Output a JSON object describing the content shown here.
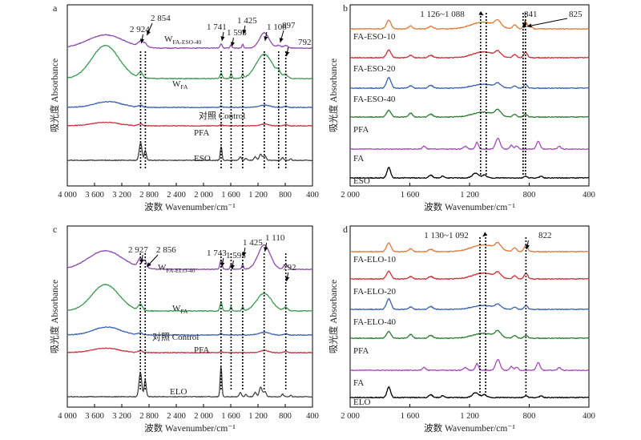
{
  "figure": {
    "axis_xlabel": "波数 Wavenumber/cm⁻¹",
    "axis_ylabel": "吸光度 Absorbance"
  },
  "chart_data": [
    {
      "panel": "a",
      "type": "line",
      "title": "",
      "xlabel": "波数 Wavenumber/cm⁻¹",
      "ylabel": "吸光度 Absorbance",
      "xlim": [
        4000,
        400
      ],
      "x_ticks": [
        "4 000",
        "3 600",
        "3 200",
        "2 800",
        "2 400",
        "2 000",
        "1 600",
        "1 200",
        "800",
        "400"
      ],
      "series": [
        {
          "name": "W",
          "sub": "FA-ESO-40",
          "color": "#8e4bb0",
          "peaks": [
            [
              3440,
              30,
              260
            ],
            [
              2924,
              12,
              35
            ],
            [
              2854,
              8,
              25
            ],
            [
              1741,
              10,
              15
            ],
            [
              1595,
              8,
              12
            ],
            [
              1425,
              8,
              12
            ],
            [
              1108,
              35,
              70
            ],
            [
              897,
              6,
              35
            ],
            [
              792,
              6,
              30
            ]
          ]
        },
        {
          "name": "W",
          "sub": "FA",
          "color": "#3a9a50",
          "peaks": [
            [
              3440,
              75,
              200
            ],
            [
              2924,
              12,
              30
            ],
            [
              1741,
              12,
              15
            ],
            [
              1595,
              12,
              12
            ],
            [
              1425,
              10,
              12
            ],
            [
              1108,
              55,
              120
            ],
            [
              897,
              10,
              30
            ],
            [
              792,
              8,
              30
            ]
          ]
        },
        {
          "name": "对照 Control",
          "color": "#3a62b5",
          "peaks": [
            [
              3400,
              13,
              200
            ],
            [
              2924,
              4,
              30
            ],
            [
              1741,
              3,
              15
            ],
            [
              1108,
              5,
              80
            ],
            [
              792,
              3,
              20
            ]
          ]
        },
        {
          "name": "PFA",
          "color": "#c9343f",
          "peaks": [
            [
              3440,
              8,
              200
            ],
            [
              2924,
              4,
              30
            ],
            [
              1741,
              3,
              15
            ],
            [
              1108,
              4,
              60
            ],
            [
              792,
              3,
              20
            ]
          ]
        },
        {
          "name": "ESO",
          "color": "#444444",
          "peaks": [
            [
              2924,
              40,
              20
            ],
            [
              2854,
              22,
              15
            ],
            [
              1741,
              32,
              12
            ],
            [
              1460,
              8,
              15
            ],
            [
              1380,
              5,
              12
            ],
            [
              1240,
              8,
              20
            ],
            [
              1160,
              14,
              20
            ],
            [
              1100,
              10,
              20
            ],
            [
              840,
              6,
              15
            ],
            [
              720,
              4,
              12
            ]
          ]
        }
      ],
      "annotations": [
        "2 924",
        "2 854",
        "1 741",
        "1 595",
        "1 425",
        "1 108",
        "897",
        "792"
      ]
    },
    {
      "panel": "b",
      "type": "line",
      "title": "",
      "xlabel": "波数 Wavenumber/cm⁻¹",
      "ylabel": "吸光度 Absorbance",
      "xlim": [
        2000,
        400
      ],
      "x_ticks": [
        "2 000",
        "1 600",
        "1 200",
        "800",
        "400"
      ],
      "series": [
        {
          "name": "FA-ESO-10",
          "color": "#e07a3a",
          "peaks": [
            [
              1741,
              18,
              15
            ],
            [
              1595,
              6,
              12
            ],
            [
              1460,
              5,
              15
            ],
            [
              1108,
              14,
              80
            ],
            [
              1010,
              12,
              20
            ],
            [
              897,
              8,
              12
            ],
            [
              825,
              15,
              12
            ],
            [
              790,
              6,
              10
            ]
          ]
        },
        {
          "name": "FA-ESO-20",
          "color": "#d03036",
          "peaks": [
            [
              1741,
              16,
              15
            ],
            [
              1595,
              5,
              12
            ],
            [
              1460,
              5,
              15
            ],
            [
              1108,
              12,
              70
            ],
            [
              1010,
              10,
              20
            ],
            [
              897,
              7,
              12
            ],
            [
              825,
              12,
              12
            ]
          ]
        },
        {
          "name": "FA-ESO-40",
          "color": "#3a62b5",
          "peaks": [
            [
              1741,
              22,
              15
            ],
            [
              1595,
              5,
              12
            ],
            [
              1460,
              6,
              15
            ],
            [
              1108,
              8,
              70
            ],
            [
              1010,
              8,
              20
            ],
            [
              897,
              5,
              12
            ],
            [
              825,
              8,
              12
            ]
          ]
        },
        {
          "name": "PFA",
          "color": "#2e7d32",
          "peaks": [
            [
              1741,
              14,
              15
            ],
            [
              1595,
              8,
              12
            ],
            [
              1460,
              6,
              15
            ],
            [
              1108,
              10,
              70
            ],
            [
              1010,
              12,
              20
            ],
            [
              897,
              6,
              12
            ],
            [
              825,
              6,
              12
            ]
          ]
        },
        {
          "name": "FA",
          "color": "#a44cb8",
          "peaks": [
            [
              1505,
              6,
              10
            ],
            [
              1230,
              6,
              12
            ],
            [
              1150,
              14,
              10
            ],
            [
              1010,
              22,
              15
            ],
            [
              920,
              8,
              10
            ],
            [
              885,
              6,
              10
            ],
            [
              740,
              16,
              12
            ],
            [
              600,
              6,
              10
            ]
          ]
        },
        {
          "name": "ESO",
          "color": "#000000",
          "peaks": [
            [
              1741,
              22,
              12
            ],
            [
              1460,
              6,
              12
            ],
            [
              1380,
              4,
              10
            ],
            [
              1160,
              10,
              20
            ],
            [
              1100,
              6,
              15
            ],
            [
              825,
              4,
              10
            ],
            [
              720,
              4,
              10
            ]
          ]
        }
      ],
      "annotations": [
        "1 126~1 088",
        "841",
        "825"
      ]
    },
    {
      "panel": "c",
      "type": "line",
      "title": "",
      "xlabel": "波数 Wavenumber/cm⁻¹",
      "ylabel": "吸光度 Absorbance",
      "xlim": [
        4000,
        400
      ],
      "x_ticks": [
        "4 000",
        "3 600",
        "3 200",
        "2 800",
        "2 400",
        "2 000",
        "1 600",
        "1 200",
        "800",
        "400"
      ],
      "series": [
        {
          "name": "W",
          "sub": "FA-ELO-40",
          "color": "#8e4bb0",
          "peaks": [
            [
              3440,
              42,
              250
            ],
            [
              2927,
              20,
              35
            ],
            [
              2856,
              14,
              25
            ],
            [
              1743,
              22,
              15
            ],
            [
              1595,
              12,
              12
            ],
            [
              1425,
              12,
              12
            ],
            [
              1110,
              55,
              90
            ],
            [
              792,
              10,
              30
            ]
          ]
        },
        {
          "name": "W",
          "sub": "FA",
          "color": "#3a9a50",
          "peaks": [
            [
              3440,
              60,
              200
            ],
            [
              2927,
              14,
              30
            ],
            [
              1743,
              20,
              15
            ],
            [
              1595,
              10,
              12
            ],
            [
              1425,
              10,
              12
            ],
            [
              1110,
              40,
              110
            ],
            [
              792,
              8,
              30
            ]
          ]
        },
        {
          "name": "对照 Control",
          "color": "#3a62b5",
          "peaks": [
            [
              3420,
              18,
              200
            ],
            [
              2927,
              4,
              30
            ],
            [
              1743,
              4,
              15
            ],
            [
              1110,
              6,
              80
            ],
            [
              792,
              3,
              20
            ]
          ]
        },
        {
          "name": "PFA",
          "color": "#c9343f",
          "peaks": [
            [
              3440,
              10,
              200
            ],
            [
              2927,
              4,
              30
            ],
            [
              1743,
              3,
              15
            ],
            [
              1110,
              5,
              60
            ],
            [
              792,
              3,
              20
            ]
          ]
        },
        {
          "name": "ELO",
          "color": "#444444",
          "peaks": [
            [
              2927,
              55,
              20
            ],
            [
              2856,
              38,
              15
            ],
            [
              1743,
              70,
              12
            ],
            [
              1460,
              10,
              15
            ],
            [
              1380,
              6,
              12
            ],
            [
              1240,
              10,
              20
            ],
            [
              1160,
              22,
              20
            ],
            [
              1100,
              12,
              20
            ],
            [
              840,
              6,
              15
            ],
            [
              720,
              4,
              12
            ]
          ]
        }
      ],
      "annotations": [
        "2 927",
        "2 856",
        "1 743",
        "1 595",
        "1 425",
        "1 110",
        "792"
      ]
    },
    {
      "panel": "d",
      "type": "line",
      "title": "",
      "xlabel": "波数 Wavenumber/cm⁻¹",
      "ylabel": "吸光度 Absorbance",
      "xlim": [
        2000,
        400
      ],
      "x_ticks": [
        "2 000",
        "1 600",
        "1 200",
        "800",
        "400"
      ],
      "series": [
        {
          "name": "FA-ELO-10",
          "color": "#e07a3a",
          "peaks": [
            [
              1741,
              18,
              15
            ],
            [
              1595,
              6,
              12
            ],
            [
              1460,
              5,
              15
            ],
            [
              1108,
              14,
              80
            ],
            [
              1010,
              12,
              20
            ],
            [
              897,
              8,
              12
            ],
            [
              822,
              14,
              12
            ]
          ]
        },
        {
          "name": "FA-ELO-20",
          "color": "#d03036",
          "peaks": [
            [
              1741,
              16,
              15
            ],
            [
              1595,
              5,
              12
            ],
            [
              1460,
              5,
              15
            ],
            [
              1108,
              12,
              70
            ],
            [
              1010,
              10,
              20
            ],
            [
              897,
              7,
              12
            ],
            [
              822,
              12,
              12
            ]
          ]
        },
        {
          "name": "FA-ELO-40",
          "color": "#3a62b5",
          "peaks": [
            [
              1741,
              22,
              15
            ],
            [
              1595,
              5,
              12
            ],
            [
              1460,
              6,
              15
            ],
            [
              1108,
              8,
              70
            ],
            [
              1010,
              8,
              20
            ],
            [
              897,
              5,
              12
            ],
            [
              822,
              8,
              12
            ]
          ]
        },
        {
          "name": "PFA",
          "color": "#2e7d32",
          "peaks": [
            [
              1741,
              14,
              15
            ],
            [
              1595,
              8,
              12
            ],
            [
              1460,
              6,
              15
            ],
            [
              1108,
              10,
              70
            ],
            [
              1010,
              12,
              20
            ],
            [
              897,
              6,
              12
            ],
            [
              822,
              6,
              12
            ]
          ]
        },
        {
          "name": "FA",
          "color": "#a44cb8",
          "peaks": [
            [
              1505,
              6,
              10
            ],
            [
              1230,
              6,
              12
            ],
            [
              1150,
              14,
              10
            ],
            [
              1010,
              22,
              15
            ],
            [
              920,
              8,
              10
            ],
            [
              885,
              6,
              10
            ],
            [
              740,
              16,
              12
            ],
            [
              600,
              6,
              10
            ]
          ]
        },
        {
          "name": "ELO",
          "color": "#000000",
          "peaks": [
            [
              1741,
              22,
              12
            ],
            [
              1460,
              6,
              12
            ],
            [
              1380,
              4,
              10
            ],
            [
              1160,
              10,
              20
            ],
            [
              1100,
              6,
              15
            ],
            [
              822,
              4,
              10
            ],
            [
              720,
              4,
              10
            ]
          ]
        }
      ],
      "annotations": [
        "1 130~1 092",
        "822"
      ]
    }
  ]
}
